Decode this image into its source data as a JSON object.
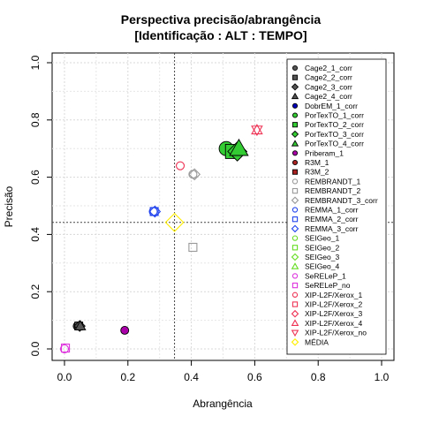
{
  "chart_data": {
    "type": "scatter",
    "title": "Perspectiva precisão/abrangência",
    "subtitle": "[Identificação : ALT : TEMPO]",
    "xlabel": "Abrangência",
    "ylabel": "Precisão",
    "xlim": [
      0,
      1
    ],
    "ylim": [
      0,
      1
    ],
    "xticks": [
      "0.0",
      "0.2",
      "0.4",
      "0.6",
      "0.8",
      "1.0"
    ],
    "yticks": [
      "0.0",
      "0.2",
      "0.4",
      "0.6",
      "0.8",
      "1.0"
    ],
    "grid": true,
    "legend_position": "right",
    "reference_lines": {
      "x": 0.347,
      "y": 0.442
    },
    "series": [
      {
        "name": "Cage2_1_corr",
        "color": "#555555",
        "shape": "circle",
        "filled": true,
        "points": [
          [
            0.04,
            0.08
          ]
        ]
      },
      {
        "name": "Cage2_2_corr",
        "color": "#555555",
        "shape": "square",
        "filled": true,
        "points": [
          [
            0.045,
            0.08
          ]
        ]
      },
      {
        "name": "Cage2_3_corr",
        "color": "#555555",
        "shape": "diamond",
        "filled": true,
        "points": [
          [
            0.048,
            0.08
          ]
        ]
      },
      {
        "name": "Cage2_4_corr",
        "color": "#555555",
        "shape": "triangle",
        "filled": true,
        "points": [
          [
            0.05,
            0.08
          ]
        ]
      },
      {
        "name": "DobrEM_1_corr",
        "color": "#0000bb",
        "shape": "circle",
        "filled": true,
        "points": []
      },
      {
        "name": "PorTexTO_1_corr",
        "color": "#33cc33",
        "shape": "circle",
        "filled": true,
        "points": [
          [
            0.51,
            0.7
          ]
        ]
      },
      {
        "name": "PorTexTO_2_corr",
        "color": "#33cc33",
        "shape": "square",
        "filled": true,
        "points": [
          [
            0.53,
            0.69
          ]
        ]
      },
      {
        "name": "PorTexTO_3_corr",
        "color": "#33cc33",
        "shape": "diamond",
        "filled": true,
        "points": [
          [
            0.545,
            0.69
          ]
        ]
      },
      {
        "name": "PorTexTO_4_corr",
        "color": "#33cc33",
        "shape": "triangle",
        "filled": true,
        "points": [
          [
            0.55,
            0.7
          ]
        ]
      },
      {
        "name": "Priberam_1",
        "color": "#aa00aa",
        "shape": "circle",
        "filled": true,
        "points": [
          [
            0.19,
            0.065
          ]
        ]
      },
      {
        "name": "R3M_1",
        "color": "#aa2222",
        "shape": "circle",
        "filled": true,
        "points": []
      },
      {
        "name": "R3M_2",
        "color": "#aa2222",
        "shape": "square",
        "filled": true,
        "points": []
      },
      {
        "name": "REMBRANDT_1",
        "color": "#999999",
        "shape": "circle",
        "filled": false,
        "points": [
          [
            0.405,
            0.61
          ]
        ]
      },
      {
        "name": "REMBRANDT_2",
        "color": "#999999",
        "shape": "square",
        "filled": false,
        "points": [
          [
            0.405,
            0.355
          ]
        ]
      },
      {
        "name": "REMBRANDT_3_corr",
        "color": "#999999",
        "shape": "diamond",
        "filled": false,
        "points": [
          [
            0.41,
            0.61
          ]
        ]
      },
      {
        "name": "REMMA_1_corr",
        "color": "#2244ee",
        "shape": "circle",
        "filled": false,
        "points": [
          [
            0.28,
            0.48
          ]
        ]
      },
      {
        "name": "REMMA_2_corr",
        "color": "#2244ee",
        "shape": "square",
        "filled": false,
        "points": [
          [
            0.283,
            0.48
          ]
        ]
      },
      {
        "name": "REMMA_3_corr",
        "color": "#2244ee",
        "shape": "diamond",
        "filled": false,
        "points": [
          [
            0.285,
            0.48
          ]
        ]
      },
      {
        "name": "SEIGeo_1",
        "color": "#66dd22",
        "shape": "circle",
        "filled": false,
        "points": []
      },
      {
        "name": "SEIGeo_2",
        "color": "#66dd22",
        "shape": "square",
        "filled": false,
        "points": []
      },
      {
        "name": "SEIGeo_3",
        "color": "#66dd22",
        "shape": "diamond",
        "filled": false,
        "points": []
      },
      {
        "name": "SEIGeo_4",
        "color": "#66dd22",
        "shape": "triangle",
        "filled": false,
        "points": []
      },
      {
        "name": "SeRELeP_1",
        "color": "#dd33dd",
        "shape": "circle",
        "filled": false,
        "points": [
          [
            0.0,
            0.0
          ]
        ]
      },
      {
        "name": "SeRELeP_no",
        "color": "#dd33dd",
        "shape": "square",
        "filled": false,
        "points": [
          [
            0.003,
            0.003
          ]
        ]
      },
      {
        "name": "XIP-L2F/Xerox_1",
        "color": "#ee3355",
        "shape": "circle",
        "filled": false,
        "points": [
          [
            0.365,
            0.64
          ]
        ]
      },
      {
        "name": "XIP-L2F/Xerox_2",
        "color": "#ee3355",
        "shape": "square",
        "filled": false,
        "points": []
      },
      {
        "name": "XIP-L2F/Xerox_3",
        "color": "#ee3355",
        "shape": "diamond",
        "filled": false,
        "points": []
      },
      {
        "name": "XIP-L2F/Xerox_4",
        "color": "#ee3355",
        "shape": "triangle",
        "filled": false,
        "points": [
          [
            0.607,
            0.765
          ]
        ]
      },
      {
        "name": "XIP-L2F/Xerox_no",
        "color": "#ee3355",
        "shape": "triangle-down",
        "filled": false,
        "points": [
          [
            0.607,
            0.765
          ]
        ]
      },
      {
        "name": "MÉDIA",
        "color": "#ffee00",
        "shape": "diamond",
        "filled": false,
        "points": [
          [
            0.347,
            0.442
          ]
        ]
      }
    ]
  }
}
